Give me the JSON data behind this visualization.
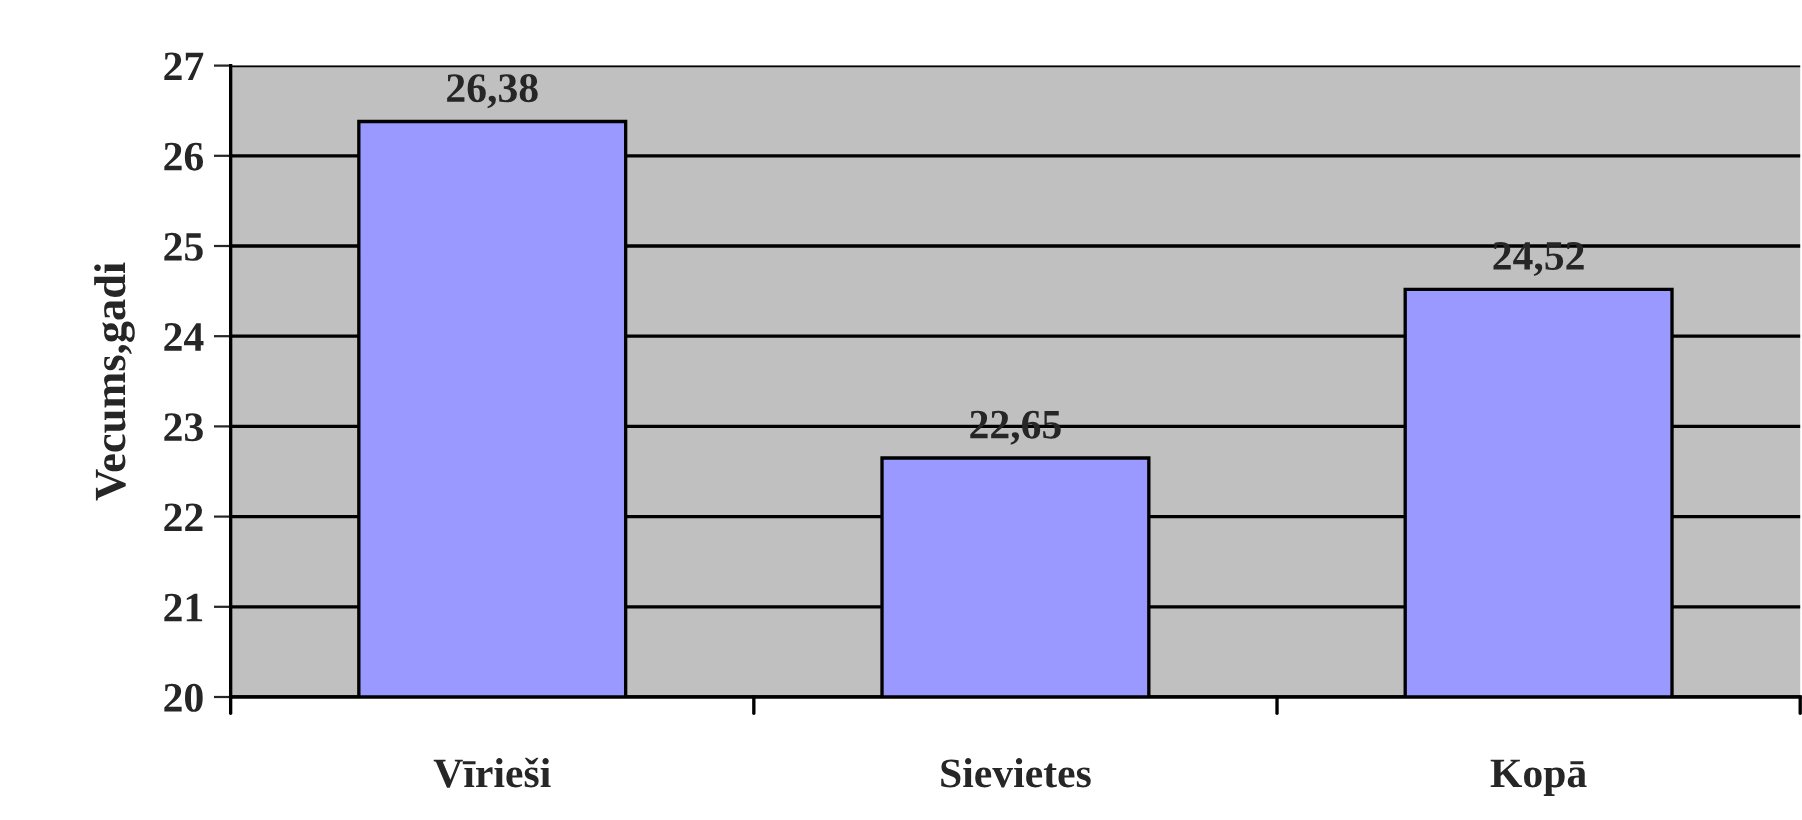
{
  "chart_data": {
    "type": "bar",
    "ylabel": "Vecums,gadi",
    "categories": [
      "Vīrieši",
      "Sievietes",
      "Kopā"
    ],
    "values": [
      26.38,
      22.65,
      24.52
    ],
    "value_labels": [
      "26,38",
      "22,65",
      "24,52"
    ],
    "color": "#9999ff",
    "ylim": [
      20,
      27
    ],
    "yticks": [
      20,
      21,
      22,
      23,
      24,
      25,
      26,
      27
    ],
    "grid": "y",
    "legend": false
  }
}
